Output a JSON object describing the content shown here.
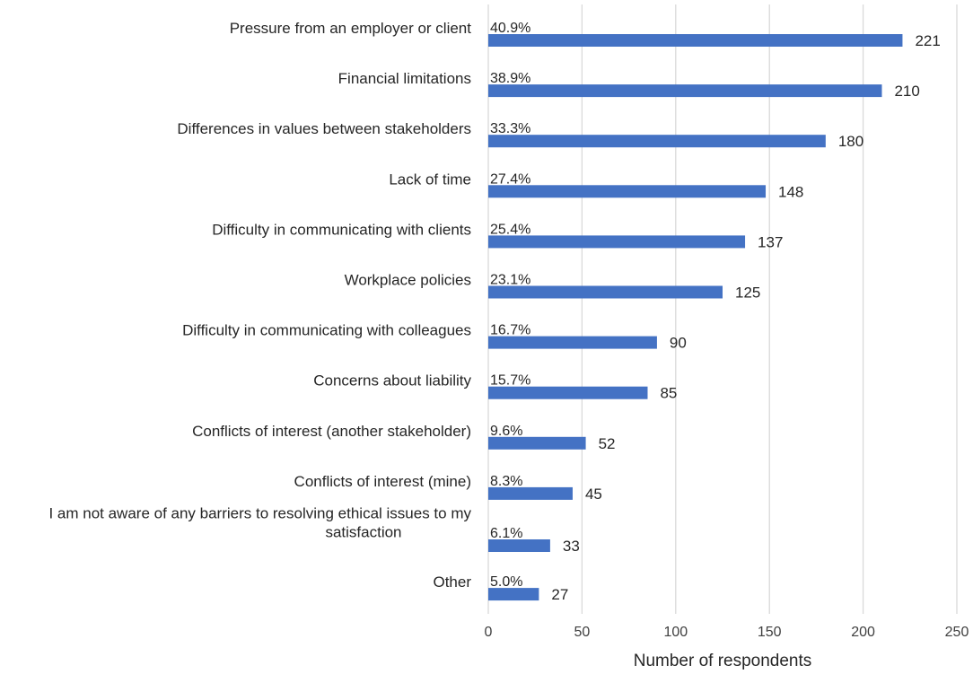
{
  "chart_data": {
    "type": "bar",
    "orientation": "horizontal",
    "categories": [
      "Pressure from an employer or client",
      "Financial limitations",
      "Differences in values between stakeholders",
      "Lack of time",
      "Difficulty in communicating with clients",
      "Workplace policies",
      "Difficulty in communicating with colleagues",
      "Concerns about liability",
      "Conflicts of interest (another stakeholder)",
      "Conflicts of interest (mine)",
      "I am not aware of any barriers to resolving ethical issues to my satisfaction",
      "Other"
    ],
    "category_lines": [
      [
        "Pressure from an employer or client"
      ],
      [
        "Financial limitations"
      ],
      [
        "Differences in values between stakeholders"
      ],
      [
        "Lack of time"
      ],
      [
        "Difficulty in communicating with clients"
      ],
      [
        "Workplace policies"
      ],
      [
        "Difficulty in communicating with colleagues"
      ],
      [
        "Concerns about liability"
      ],
      [
        "Conflicts of interest (another stakeholder)"
      ],
      [
        "Conflicts of interest (mine)"
      ],
      [
        "I am not aware of any barriers to resolving ethical issues to my",
        "satisfaction"
      ],
      [
        "Other"
      ]
    ],
    "values": [
      221,
      210,
      180,
      148,
      137,
      125,
      90,
      85,
      52,
      45,
      33,
      27
    ],
    "percent_labels": [
      "40.9%",
      "38.9%",
      "33.3%",
      "27.4%",
      "25.4%",
      "23.1%",
      "16.7%",
      "15.7%",
      "9.6%",
      "8.3%",
      "6.1%",
      "5.0%"
    ],
    "title": "",
    "xlabel": "Number of respondents",
    "ylabel": "",
    "xlim": [
      0,
      250
    ],
    "xticks": [
      0,
      50,
      100,
      150,
      200,
      250
    ],
    "grid": true,
    "legend": "none",
    "bar_color": "#4472c4",
    "grid_color": "#d9d9d9"
  }
}
